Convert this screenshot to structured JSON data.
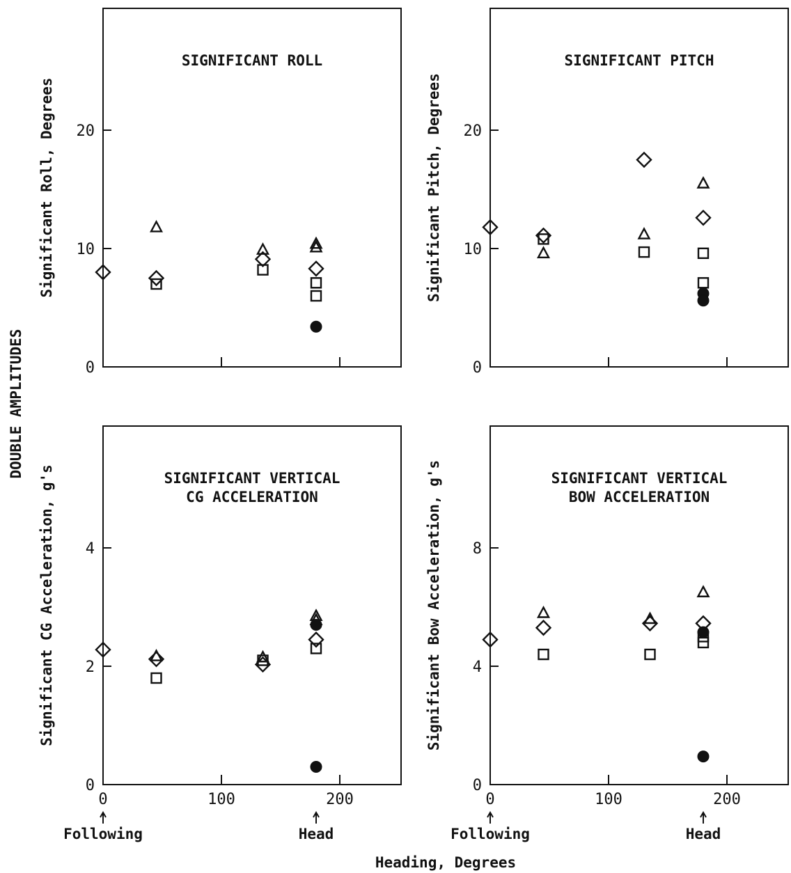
{
  "figure": {
    "common_ylabel": "DOUBLE AMPLITUDES",
    "common_xlabel": "Heading, Degrees"
  },
  "chart_data": [
    {
      "type": "scatter",
      "title": [
        "SIGNIFICANT ROLL"
      ],
      "ylabel": "Significant Roll, Degrees",
      "xlabel": "",
      "xlim": [
        0,
        250
      ],
      "ylim": [
        0,
        30
      ],
      "xticks": [
        0,
        100,
        200
      ],
      "xtick_labels": [
        "",
        "",
        ""
      ],
      "yticks": [
        0,
        10,
        20
      ],
      "ytick_labels": [
        "0",
        "10",
        "20"
      ],
      "x_annotations": [],
      "series": [
        {
          "marker": "diamond",
          "points": [
            [
              0,
              8.0
            ],
            [
              45,
              7.5
            ],
            [
              135,
              9.1
            ],
            [
              180,
              8.3
            ]
          ]
        },
        {
          "marker": "triangle",
          "points": [
            [
              45,
              11.8
            ],
            [
              135,
              9.9
            ],
            [
              180,
              10.4
            ],
            [
              180,
              10.1
            ]
          ]
        },
        {
          "marker": "square",
          "points": [
            [
              45,
              7.0
            ],
            [
              135,
              8.2
            ],
            [
              180,
              7.1
            ],
            [
              180,
              6.0
            ]
          ]
        },
        {
          "marker": "circle-filled",
          "points": [
            [
              180,
              3.4
            ]
          ]
        }
      ]
    },
    {
      "type": "scatter",
      "title": [
        "SIGNIFICANT PITCH"
      ],
      "ylabel": "Significant Pitch, Degrees",
      "xlabel": "",
      "xlim": [
        0,
        250
      ],
      "ylim": [
        0,
        30
      ],
      "xticks": [
        0,
        100,
        200
      ],
      "xtick_labels": [
        "",
        "",
        ""
      ],
      "yticks": [
        0,
        10,
        20
      ],
      "ytick_labels": [
        "0",
        "10",
        "20"
      ],
      "x_annotations": [],
      "series": [
        {
          "marker": "diamond",
          "points": [
            [
              0,
              11.8
            ],
            [
              45,
              11.1
            ],
            [
              130,
              17.5
            ],
            [
              180,
              12.6
            ]
          ]
        },
        {
          "marker": "triangle",
          "points": [
            [
              45,
              9.6
            ],
            [
              130,
              11.2
            ],
            [
              180,
              15.5
            ]
          ]
        },
        {
          "marker": "square",
          "points": [
            [
              45,
              10.8
            ],
            [
              130,
              9.7
            ],
            [
              180,
              9.6
            ],
            [
              180,
              7.1
            ]
          ]
        },
        {
          "marker": "circle-filled",
          "points": [
            [
              180,
              6.2
            ],
            [
              180,
              5.6
            ]
          ]
        }
      ]
    },
    {
      "type": "scatter",
      "title": [
        "SIGNIFICANT VERTICAL",
        "CG ACCELERATION"
      ],
      "ylabel": "Significant CG Acceleration, g's",
      "xlabel": "",
      "xlim": [
        0,
        250
      ],
      "ylim": [
        0,
        6
      ],
      "xticks": [
        0,
        100,
        200
      ],
      "xtick_labels": [
        "0",
        "100",
        "200"
      ],
      "yticks": [
        0,
        2,
        4
      ],
      "ytick_labels": [
        "0",
        "2",
        "4"
      ],
      "x_annotations": [
        {
          "x": 0,
          "text": "Following"
        },
        {
          "x": 180,
          "text": "Head"
        }
      ],
      "series": [
        {
          "marker": "diamond",
          "points": [
            [
              0,
              2.28
            ],
            [
              45,
              2.12
            ],
            [
              135,
              2.03
            ],
            [
              180,
              2.45
            ]
          ]
        },
        {
          "marker": "triangle",
          "points": [
            [
              45,
              2.17
            ],
            [
              135,
              2.15
            ],
            [
              180,
              2.85
            ],
            [
              180,
              2.78
            ]
          ]
        },
        {
          "marker": "square",
          "points": [
            [
              45,
              1.8
            ],
            [
              135,
              2.1
            ],
            [
              180,
              2.3
            ]
          ]
        },
        {
          "marker": "circle-filled",
          "points": [
            [
              180,
              2.7
            ],
            [
              180,
              0.3
            ]
          ]
        }
      ]
    },
    {
      "type": "scatter",
      "title": [
        "SIGNIFICANT VERTICAL",
        "BOW ACCELERATION"
      ],
      "ylabel": "Significant Bow Acceleration, g's",
      "xlabel": "",
      "xlim": [
        0,
        250
      ],
      "ylim": [
        0,
        12
      ],
      "xticks": [
        0,
        100,
        200
      ],
      "xtick_labels": [
        "0",
        "100",
        "200"
      ],
      "yticks": [
        0,
        4,
        8
      ],
      "ytick_labels": [
        "0",
        "4",
        "8"
      ],
      "x_annotations": [
        {
          "x": 0,
          "text": "Following"
        },
        {
          "x": 180,
          "text": "Head"
        }
      ],
      "series": [
        {
          "marker": "diamond",
          "points": [
            [
              0,
              4.9
            ],
            [
              45,
              5.3
            ],
            [
              135,
              5.45
            ],
            [
              180,
              5.45
            ]
          ]
        },
        {
          "marker": "triangle",
          "points": [
            [
              45,
              5.8
            ],
            [
              135,
              5.6
            ],
            [
              180,
              6.5
            ]
          ]
        },
        {
          "marker": "square",
          "points": [
            [
              45,
              4.4
            ],
            [
              135,
              4.4
            ],
            [
              180,
              4.8
            ],
            [
              180,
              5.0
            ]
          ]
        },
        {
          "marker": "circle-filled",
          "points": [
            [
              180,
              5.15
            ],
            [
              180,
              0.95
            ]
          ]
        }
      ]
    }
  ]
}
